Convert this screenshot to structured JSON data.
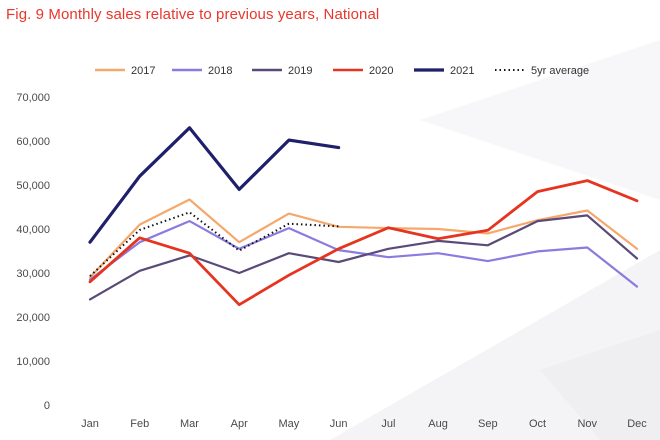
{
  "title": "Fig. 9 Monthly sales relative to previous years, National",
  "colors": {
    "title": "#e8372b",
    "2017": "#f5a86b",
    "2018": "#8b7be0",
    "2019": "#5a4a78",
    "2020": "#e5341f",
    "2021": "#1f1f6b",
    "avg": "#111111"
  },
  "chart_data": {
    "type": "line",
    "title": "Fig. 9 Monthly sales relative to previous years, National",
    "xlabel": "",
    "ylabel": "",
    "categories": [
      "Jan",
      "Feb",
      "Mar",
      "Apr",
      "May",
      "Jun",
      "Jul",
      "Aug",
      "Sep",
      "Oct",
      "Nov",
      "Dec"
    ],
    "ylim": [
      0,
      70000
    ],
    "yticks": [
      0,
      10000,
      20000,
      30000,
      40000,
      50000,
      60000,
      70000
    ],
    "ytick_labels": [
      "0",
      "10,000",
      "20,000",
      "30,000",
      "40,000",
      "50,000",
      "60,000",
      "70,000"
    ],
    "grid": false,
    "legend_position": "top",
    "series": [
      {
        "name": "2017",
        "style": "solid",
        "values": [
          29000,
          41000,
          46700,
          37000,
          43500,
          40500,
          40200,
          40000,
          39000,
          42000,
          44200,
          35500
        ]
      },
      {
        "name": "2018",
        "style": "solid",
        "values": [
          28500,
          37000,
          41800,
          35500,
          40200,
          35200,
          33600,
          34500,
          32700,
          34900,
          35800,
          26900
        ]
      },
      {
        "name": "2019",
        "style": "solid",
        "values": [
          24000,
          30500,
          34000,
          30000,
          34500,
          32500,
          35500,
          37300,
          36300,
          41800,
          43100,
          33300
        ]
      },
      {
        "name": "2020",
        "style": "solid",
        "values": [
          28000,
          38000,
          34500,
          22800,
          29500,
          35500,
          40300,
          37800,
          39700,
          48500,
          51000,
          46400
        ]
      },
      {
        "name": "2021",
        "style": "solid",
        "values": [
          37000,
          52000,
          63000,
          49000,
          60200,
          58500,
          null,
          null,
          null,
          null,
          null,
          null
        ]
      },
      {
        "name": "5yr average",
        "style": "dotted",
        "values": [
          29300,
          39800,
          43800,
          35100,
          41200,
          40600,
          null,
          null,
          null,
          null,
          null,
          null
        ]
      }
    ]
  }
}
